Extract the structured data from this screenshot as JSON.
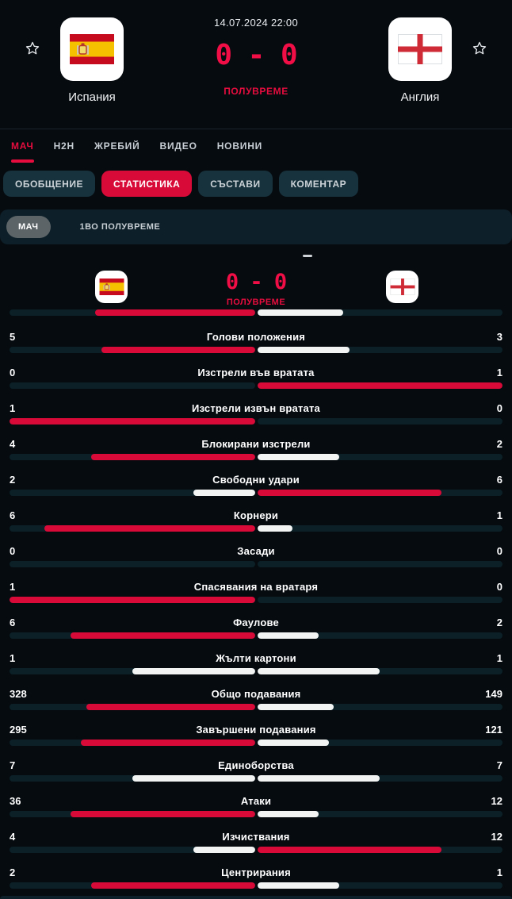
{
  "colors": {
    "background": "#060b10",
    "accent_red": "#e60d3e",
    "score_red": "#f10e46",
    "bar_red": "#d80a38",
    "bar_white": "#f2f4f4",
    "bar_track": "#0b2127",
    "strip_bg": "#0d2029",
    "pill_bg": "#17323c",
    "gray_pill": "#5c6468",
    "muted_text": "#c7ced4"
  },
  "header": {
    "datetime": "14.07.2024 22:00",
    "score": "0 - 0",
    "status": "ПОЛУВРЕМЕ",
    "home_team": {
      "name": "Испания",
      "flag": "spain"
    },
    "away_team": {
      "name": "Англия",
      "flag": "england"
    }
  },
  "main_tabs": [
    {
      "key": "match",
      "label": "МАЧ",
      "active": true
    },
    {
      "key": "h2h",
      "label": "H2H",
      "active": false
    },
    {
      "key": "draw",
      "label": "ЖРЕБИЙ",
      "active": false
    },
    {
      "key": "video",
      "label": "ВИДЕО",
      "active": false
    },
    {
      "key": "news",
      "label": "НОВИНИ",
      "active": false
    }
  ],
  "section_tabs": [
    {
      "key": "summary",
      "label": "ОБОБЩЕНИЕ",
      "active": false
    },
    {
      "key": "statistics",
      "label": "СТАТИСТИКА",
      "active": true
    },
    {
      "key": "lineups",
      "label": "СЪСТАВИ",
      "active": false
    },
    {
      "key": "commentary",
      "label": "КОМЕНТАР",
      "active": false
    }
  ],
  "period_tabs": [
    {
      "key": "match",
      "label": "МАЧ",
      "active": true
    },
    {
      "key": "first-half",
      "label": "1ВО ПОЛУВРЕМЕ",
      "active": false
    }
  ],
  "stats_header": {
    "score": "0 - 0",
    "status": "ПОЛУВРЕМЕ"
  },
  "stats": {
    "partial_bar": {
      "home_ratio": 0.65,
      "away_ratio": 0.35
    },
    "rows": [
      {
        "label": "Голови положения",
        "home": "5",
        "away": "3"
      },
      {
        "label": "Изстрели във вратата",
        "home": "0",
        "away": "1"
      },
      {
        "label": "Изстрели извън вратата",
        "home": "1",
        "away": "0"
      },
      {
        "label": "Блокирани изстрели",
        "home": "4",
        "away": "2"
      },
      {
        "label": "Свободни удари",
        "home": "2",
        "away": "6"
      },
      {
        "label": "Корнери",
        "home": "6",
        "away": "1"
      },
      {
        "label": "Засади",
        "home": "0",
        "away": "0"
      },
      {
        "label": "Спасявания на вратаря",
        "home": "1",
        "away": "0"
      },
      {
        "label": "Фаулове",
        "home": "6",
        "away": "2"
      },
      {
        "label": "Жълти картони",
        "home": "1",
        "away": "1"
      },
      {
        "label": "Общо подавания",
        "home": "328",
        "away": "149"
      },
      {
        "label": "Завършени подавания",
        "home": "295",
        "away": "121"
      },
      {
        "label": "Единоборства",
        "home": "7",
        "away": "7"
      },
      {
        "label": "Атаки",
        "home": "36",
        "away": "12"
      },
      {
        "label": "Изчиствания",
        "home": "4",
        "away": "12"
      },
      {
        "label": "Центрирания",
        "home": "2",
        "away": "1"
      }
    ]
  }
}
